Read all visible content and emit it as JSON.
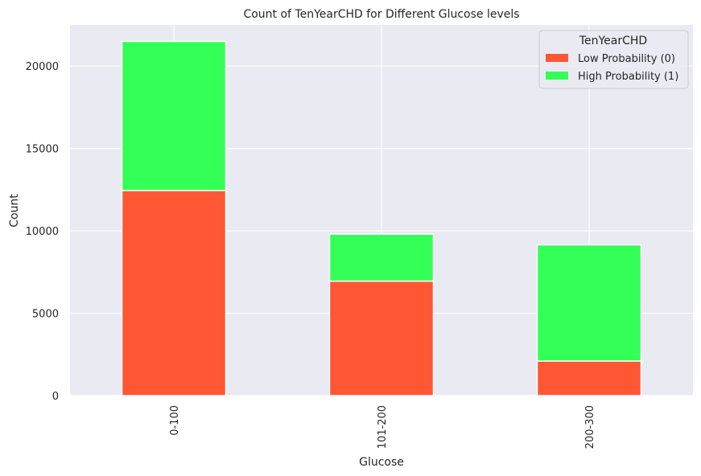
{
  "chart_data": {
    "type": "bar",
    "stacked": true,
    "title": "Count of TenYearCHD for Different Glucose levels",
    "xlabel": "Glucose",
    "ylabel": "Count",
    "categories": [
      "0-100",
      "101-200",
      "200-300"
    ],
    "series": [
      {
        "name": "Low Probability (0)",
        "color": "#ff5733",
        "values": [
          12450,
          6950,
          2100
        ]
      },
      {
        "name": "High Probability (1)",
        "color": "#33ff57",
        "values": [
          9050,
          2850,
          7050
        ]
      }
    ],
    "ylim": [
      0,
      22500
    ],
    "yticks": [
      0,
      5000,
      10000,
      15000,
      20000
    ],
    "ytick_labels": [
      "0",
      "5000",
      "10000",
      "15000",
      "20000"
    ],
    "grid": true,
    "legend": {
      "title": "TenYearCHD",
      "placement": "top-right"
    },
    "background_color": "#eaeaf2",
    "grid_color": "#ffffff"
  }
}
